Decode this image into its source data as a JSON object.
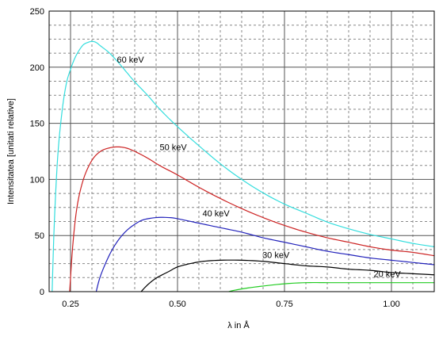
{
  "chart_data": {
    "type": "line",
    "xlabel": "λ in Å",
    "ylabel": "Intensitatea [unitati relative]",
    "xlim": [
      0.2,
      1.1
    ],
    "ylim": [
      0,
      250
    ],
    "x_ticks": [
      {
        "value": 0.25,
        "label": "0.25"
      },
      {
        "value": 0.5,
        "label": "0.50"
      },
      {
        "value": 0.75,
        "label": "0.75"
      },
      {
        "value": 1.0,
        "label": "1.00"
      }
    ],
    "y_ticks": [
      {
        "value": 0,
        "label": "0"
      },
      {
        "value": 50,
        "label": "50"
      },
      {
        "value": 100,
        "label": "100"
      },
      {
        "value": 150,
        "label": "150"
      },
      {
        "value": 200,
        "label": "200"
      },
      {
        "value": 250,
        "label": "250"
      }
    ],
    "grid": true,
    "series": [
      {
        "name": "60 keV",
        "color": "#33dddd",
        "label_at": {
          "x": 0.39,
          "y": 204
        },
        "points": [
          [
            0.207,
            0
          ],
          [
            0.212,
            60
          ],
          [
            0.22,
            120
          ],
          [
            0.23,
            160
          ],
          [
            0.24,
            185
          ],
          [
            0.25,
            198
          ],
          [
            0.26,
            208
          ],
          [
            0.27,
            215
          ],
          [
            0.28,
            220
          ],
          [
            0.29,
            222
          ],
          [
            0.3,
            223
          ],
          [
            0.31,
            222
          ],
          [
            0.32,
            219
          ],
          [
            0.34,
            213
          ],
          [
            0.36,
            205
          ],
          [
            0.38,
            196
          ],
          [
            0.4,
            187
          ],
          [
            0.43,
            175
          ],
          [
            0.46,
            162
          ],
          [
            0.5,
            147
          ],
          [
            0.55,
            130
          ],
          [
            0.6,
            114
          ],
          [
            0.65,
            100
          ],
          [
            0.7,
            88
          ],
          [
            0.75,
            78
          ],
          [
            0.8,
            70
          ],
          [
            0.85,
            62
          ],
          [
            0.9,
            56
          ],
          [
            0.95,
            51
          ],
          [
            1.0,
            47
          ],
          [
            1.05,
            43
          ],
          [
            1.1,
            40
          ]
        ]
      },
      {
        "name": "50 keV",
        "color": "#cc2222",
        "label_at": {
          "x": 0.49,
          "y": 126
        },
        "points": [
          [
            0.248,
            0
          ],
          [
            0.255,
            40
          ],
          [
            0.265,
            75
          ],
          [
            0.28,
            100
          ],
          [
            0.3,
            117
          ],
          [
            0.32,
            125
          ],
          [
            0.34,
            128
          ],
          [
            0.36,
            129
          ],
          [
            0.38,
            128
          ],
          [
            0.4,
            125
          ],
          [
            0.43,
            119
          ],
          [
            0.46,
            112
          ],
          [
            0.5,
            104
          ],
          [
            0.55,
            93
          ],
          [
            0.6,
            83
          ],
          [
            0.65,
            74
          ],
          [
            0.7,
            66
          ],
          [
            0.75,
            59
          ],
          [
            0.8,
            53
          ],
          [
            0.85,
            48
          ],
          [
            0.9,
            44
          ],
          [
            0.95,
            40
          ],
          [
            1.0,
            37
          ],
          [
            1.05,
            35
          ],
          [
            1.1,
            32
          ]
        ]
      },
      {
        "name": "40 keV",
        "color": "#2222bb",
        "label_at": {
          "x": 0.59,
          "y": 67
        },
        "points": [
          [
            0.31,
            0
          ],
          [
            0.32,
            14
          ],
          [
            0.34,
            32
          ],
          [
            0.36,
            45
          ],
          [
            0.38,
            54
          ],
          [
            0.4,
            60
          ],
          [
            0.42,
            64
          ],
          [
            0.45,
            66
          ],
          [
            0.48,
            66
          ],
          [
            0.5,
            65
          ],
          [
            0.55,
            61
          ],
          [
            0.6,
            57
          ],
          [
            0.65,
            53
          ],
          [
            0.7,
            48
          ],
          [
            0.75,
            44
          ],
          [
            0.8,
            40
          ],
          [
            0.85,
            36
          ],
          [
            0.9,
            33
          ],
          [
            0.95,
            30
          ],
          [
            1.0,
            28
          ],
          [
            1.05,
            26
          ],
          [
            1.1,
            24
          ]
        ]
      },
      {
        "name": "30 keV",
        "color": "#000000",
        "label_at": {
          "x": 0.73,
          "y": 30
        },
        "points": [
          [
            0.415,
            0
          ],
          [
            0.43,
            6
          ],
          [
            0.45,
            12
          ],
          [
            0.48,
            18
          ],
          [
            0.5,
            22
          ],
          [
            0.53,
            25
          ],
          [
            0.56,
            27
          ],
          [
            0.6,
            28
          ],
          [
            0.65,
            28
          ],
          [
            0.7,
            27
          ],
          [
            0.75,
            25
          ],
          [
            0.8,
            23
          ],
          [
            0.85,
            22
          ],
          [
            0.9,
            20
          ],
          [
            0.95,
            19
          ],
          [
            1.0,
            17
          ],
          [
            1.05,
            16
          ],
          [
            1.1,
            15
          ]
        ]
      },
      {
        "name": "20 keV",
        "color": "#22cc22",
        "label_at": {
          "x": 0.99,
          "y": 13
        },
        "points": [
          [
            0.62,
            0
          ],
          [
            0.63,
            1
          ],
          [
            0.66,
            3
          ],
          [
            0.7,
            5
          ],
          [
            0.75,
            7
          ],
          [
            0.8,
            8
          ],
          [
            0.85,
            8
          ],
          [
            0.9,
            8
          ],
          [
            0.95,
            8
          ],
          [
            1.0,
            8
          ],
          [
            1.05,
            8
          ],
          [
            1.1,
            8
          ]
        ]
      }
    ]
  }
}
